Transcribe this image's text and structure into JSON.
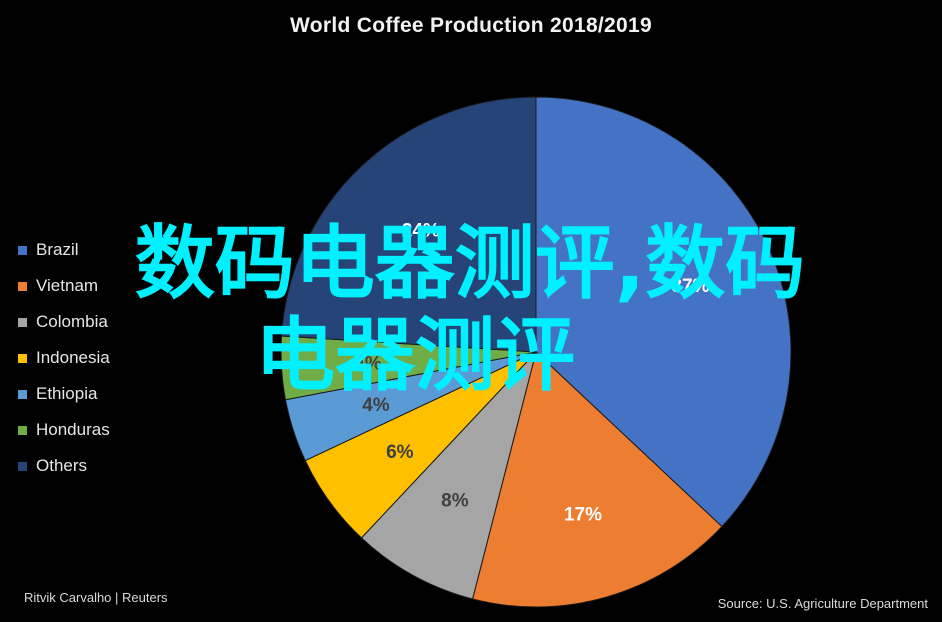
{
  "chart_data": {
    "type": "pie",
    "title": "World Coffee Production 2018/2019",
    "categories": [
      "Brazil",
      "Vietnam",
      "Colombia",
      "Indonesia",
      "Ethiopia",
      "Honduras",
      "Others"
    ],
    "values": [
      37,
      17,
      8,
      6,
      4,
      4,
      24
    ],
    "value_labels": [
      "37%",
      "17%",
      "8%",
      "6%",
      "4%",
      "4%",
      "24%"
    ],
    "colors": [
      "#4472c4",
      "#ed7d31",
      "#a5a5a5",
      "#ffc000",
      "#5b9bd5",
      "#70ad47",
      "#264478"
    ],
    "legend_position": "left",
    "start_angle_deg": 0,
    "direction": "clockwise"
  },
  "footer": {
    "credit": "Ritvik Carvalho | Reuters",
    "source": "Source: U.S. Agriculture Department"
  },
  "watermark": {
    "line1": "数码电器测评,数码",
    "line2": "电器测评"
  }
}
